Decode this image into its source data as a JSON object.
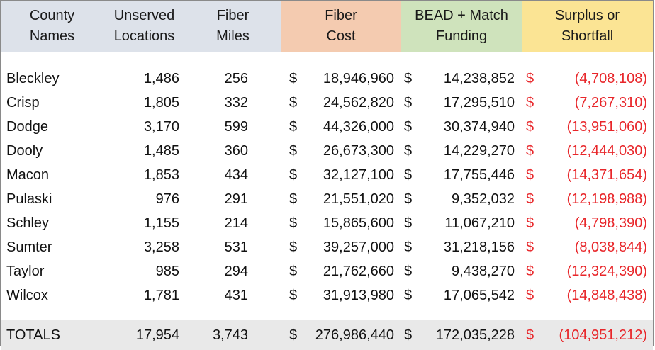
{
  "headers": {
    "county": [
      "County",
      "Names"
    ],
    "unserved": [
      "Unserved",
      "Locations"
    ],
    "miles": [
      "Fiber",
      "Miles"
    ],
    "fiber_cost": [
      "Fiber",
      "Cost"
    ],
    "bead": [
      "BEAD + Match",
      "Funding"
    ],
    "surplus": [
      "Surplus or",
      "Shortfall"
    ]
  },
  "currency_symbol": "$",
  "colors": {
    "header_gray": "#dde2ea",
    "header_orange": "#f4cbb0",
    "header_green": "#cfe3bc",
    "header_yellow": "#fbe494",
    "shortfall_red": "#e8262a",
    "totals_bg": "#e9e9e9"
  },
  "rows": [
    {
      "county": "Bleckley",
      "unserved": "1,486",
      "miles": "256",
      "fiber_cost": "18,946,960",
      "bead": "14,238,852",
      "surplus": "(4,708,108)"
    },
    {
      "county": "Crisp",
      "unserved": "1,805",
      "miles": "332",
      "fiber_cost": "24,562,820",
      "bead": "17,295,510",
      "surplus": "(7,267,310)"
    },
    {
      "county": "Dodge",
      "unserved": "3,170",
      "miles": "599",
      "fiber_cost": "44,326,000",
      "bead": "30,374,940",
      "surplus": "(13,951,060)"
    },
    {
      "county": "Dooly",
      "unserved": "1,485",
      "miles": "360",
      "fiber_cost": "26,673,300",
      "bead": "14,229,270",
      "surplus": "(12,444,030)"
    },
    {
      "county": "Macon",
      "unserved": "1,853",
      "miles": "434",
      "fiber_cost": "32,127,100",
      "bead": "17,755,446",
      "surplus": "(14,371,654)"
    },
    {
      "county": "Pulaski",
      "unserved": "976",
      "miles": "291",
      "fiber_cost": "21,551,020",
      "bead": "9,352,032",
      "surplus": "(12,198,988)"
    },
    {
      "county": "Schley",
      "unserved": "1,155",
      "miles": "214",
      "fiber_cost": "15,865,600",
      "bead": "11,067,210",
      "surplus": "(4,798,390)"
    },
    {
      "county": "Sumter",
      "unserved": "3,258",
      "miles": "531",
      "fiber_cost": "39,257,000",
      "bead": "31,218,156",
      "surplus": "(8,038,844)"
    },
    {
      "county": "Taylor",
      "unserved": "985",
      "miles": "294",
      "fiber_cost": "21,762,660",
      "bead": "9,438,270",
      "surplus": "(12,324,390)"
    },
    {
      "county": "Wilcox",
      "unserved": "1,781",
      "miles": "431",
      "fiber_cost": "31,913,980",
      "bead": "17,065,542",
      "surplus": "(14,848,438)"
    }
  ],
  "totals": {
    "label": "TOTALS",
    "unserved": "17,954",
    "miles": "3,743",
    "fiber_cost": "276,986,440",
    "bead": "172,035,228",
    "surplus": "(104,951,212)"
  }
}
